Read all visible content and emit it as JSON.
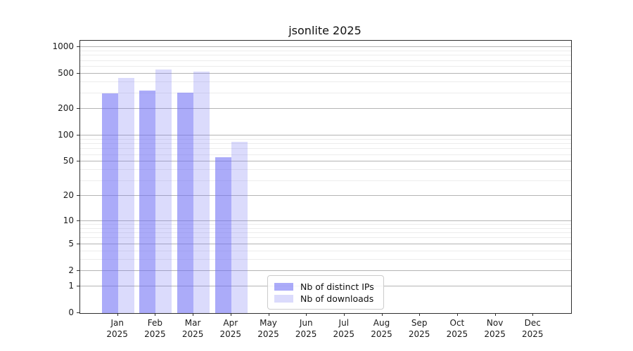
{
  "title": "jsonlite 2025",
  "colors": {
    "bar_base": "110,110,245",
    "distinct_ips": "rgba(110,110,245,0.58)",
    "downloads": "rgba(110,110,245,0.25)",
    "grid_major": "#b4b4b4",
    "grid_minor": "#ececec",
    "spine": "#2e2e2e"
  },
  "legend": {
    "items": [
      {
        "label": "Nb of distinct IPs",
        "color": "rgba(110,110,245,0.58)"
      },
      {
        "label": "Nb of downloads",
        "color": "rgba(110,110,245,0.25)"
      }
    ]
  },
  "chart_data": {
    "type": "bar",
    "title": "jsonlite 2025",
    "categories": [
      "Jan 2025",
      "Feb 2025",
      "Mar 2025",
      "Apr 2025",
      "May 2025",
      "Jun 2025",
      "Jul 2025",
      "Aug 2025",
      "Sep 2025",
      "Oct 2025",
      "Nov 2025",
      "Dec 2025"
    ],
    "x_months": [
      "Jan",
      "Feb",
      "Mar",
      "Apr",
      "May",
      "Jun",
      "Jul",
      "Aug",
      "Sep",
      "Oct",
      "Nov",
      "Dec"
    ],
    "x_year": "2025",
    "series": [
      {
        "name": "Nb of distinct IPs",
        "color": "rgba(110,110,245,0.58)",
        "values": [
          298,
          321,
          305,
          56,
          null,
          null,
          null,
          null,
          null,
          null,
          null,
          null
        ]
      },
      {
        "name": "Nb of downloads",
        "color": "rgba(110,110,245,0.25)",
        "values": [
          445,
          558,
          532,
          85,
          null,
          null,
          null,
          null,
          null,
          null,
          null,
          null
        ]
      }
    ],
    "yscale": "log1p",
    "ylim": [
      0,
      1180
    ],
    "y_major_ticks": [
      0,
      1,
      2,
      5,
      10,
      20,
      50,
      100,
      200,
      500,
      1000
    ],
    "y_minor_gridlines": [
      3,
      4,
      6,
      7,
      8,
      9,
      30,
      40,
      60,
      70,
      80,
      90,
      300,
      400,
      600,
      700,
      800,
      900
    ],
    "grid": "horizontal",
    "legend_position": "lower center"
  }
}
